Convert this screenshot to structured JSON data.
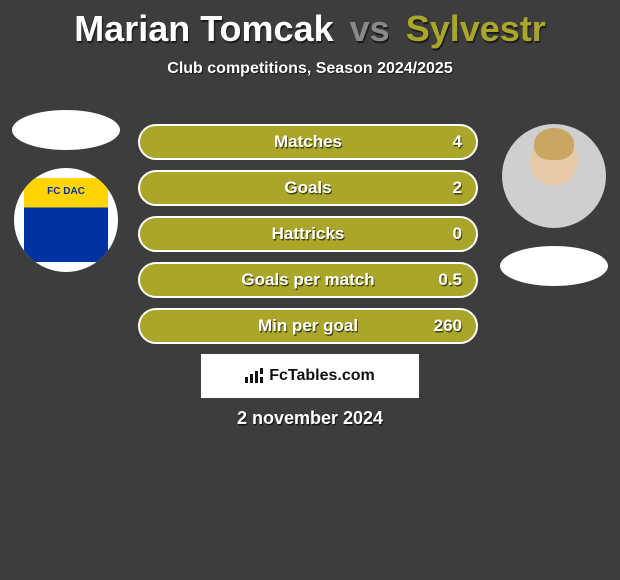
{
  "title": {
    "player1": "Marian Tomcak",
    "vs": "vs",
    "player2": "Sylvestr"
  },
  "subtitle": "Club competitions, Season 2024/2025",
  "bars": {
    "color": "#a9a62a",
    "border_color": "#ffffff",
    "text_color": "#ffffff",
    "items": [
      {
        "label": "Matches",
        "value": "4"
      },
      {
        "label": "Goals",
        "value": "2"
      },
      {
        "label": "Hattricks",
        "value": "0"
      },
      {
        "label": "Goals per match",
        "value": "0.5"
      },
      {
        "label": "Min per goal",
        "value": "260"
      }
    ]
  },
  "left": {
    "club_code": "FC DAC",
    "club_colors": {
      "top": "#ffd400",
      "bottom": "#0033a0"
    }
  },
  "brand": {
    "text": "FcTables.com"
  },
  "date": "2 november 2024",
  "colors": {
    "background": "#3d3d3d",
    "player1_name": "#ffffff",
    "vs": "#8a8a8a",
    "player2_name": "#a9a62a"
  }
}
